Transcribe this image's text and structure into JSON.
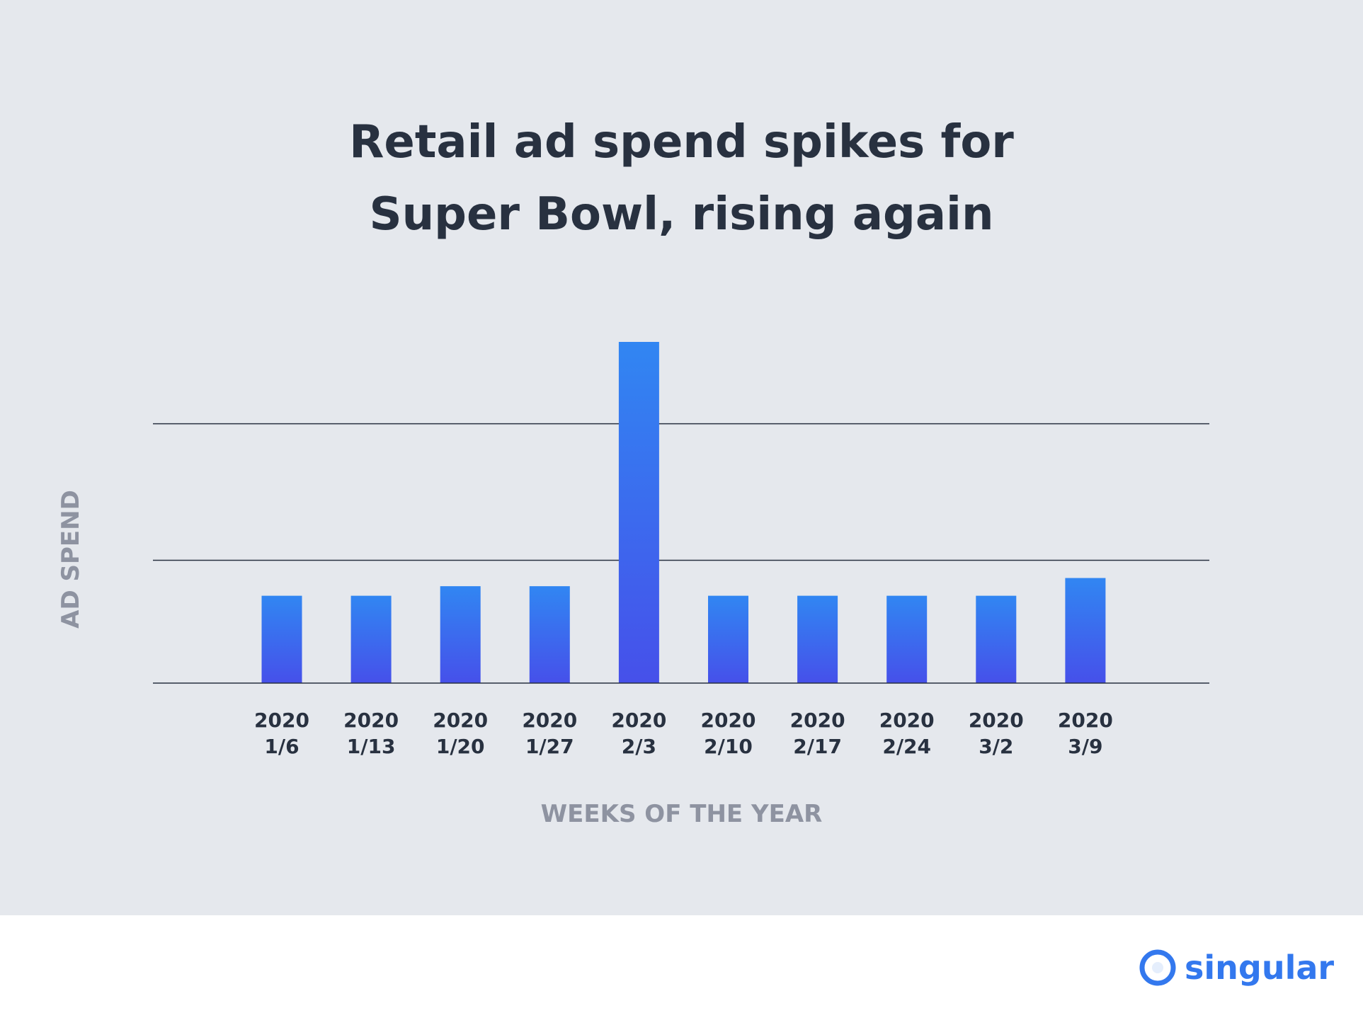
{
  "title_lines": [
    "Retail ad spend spikes for",
    "Super Bowl, rising again"
  ],
  "colors": {
    "background": "#e5e8ed",
    "bar_top": "#3186f2",
    "bar_bottom": "#4650ea",
    "gridline": "#283140",
    "title": "#283140",
    "axis_label": "#8e93a1",
    "brand": "#3378ee"
  },
  "chart_data": {
    "type": "bar",
    "title": "Retail ad spend spikes for Super Bowl, rising again",
    "xlabel": "WEEKS OF THE YEAR",
    "ylabel": "AD SPEND",
    "categories": [
      "2020 1/6",
      "2020 1/13",
      "2020 1/20",
      "2020 1/27",
      "2020 2/3",
      "2020 2/10",
      "2020 2/17",
      "2020 2/24",
      "2020 3/2",
      "2020 3/9"
    ],
    "category_lines": [
      [
        "2020",
        "1/6"
      ],
      [
        "2020",
        "1/13"
      ],
      [
        "2020",
        "1/20"
      ],
      [
        "2020",
        "1/27"
      ],
      [
        "2020",
        "2/3"
      ],
      [
        "2020",
        "2/10"
      ],
      [
        "2020",
        "2/17"
      ],
      [
        "2020",
        "2/24"
      ],
      [
        "2020",
        "3/2"
      ],
      [
        "2020",
        "3/9"
      ]
    ],
    "values": [
      0.64,
      0.64,
      0.71,
      0.71,
      2.5,
      0.64,
      0.64,
      0.64,
      0.64,
      0.77
    ],
    "gridlines": [
      0.9,
      1.9
    ],
    "ylim": [
      0,
      2.5
    ],
    "grid": true,
    "legend": "none"
  },
  "brand": {
    "name": "singular"
  }
}
